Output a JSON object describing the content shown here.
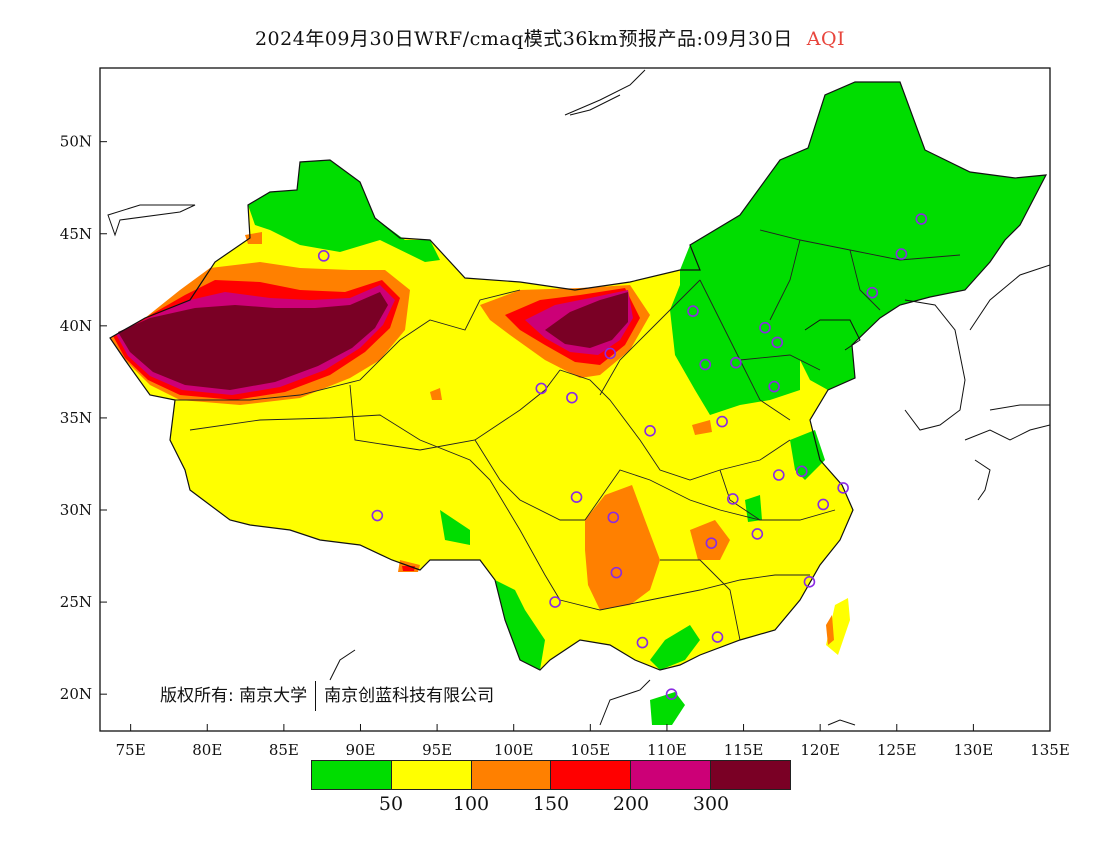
{
  "title": {
    "main": "2024年09月30日WRF/cmaq模式36km预报产品:09月30日",
    "product": "AQI",
    "product_color": "#e8453c"
  },
  "axes": {
    "lon_min": 73,
    "lon_max": 135,
    "lat_min": 18,
    "lat_max": 54,
    "x_ticks": [
      "75E",
      "80E",
      "85E",
      "90E",
      "95E",
      "100E",
      "105E",
      "110E",
      "115E",
      "120E",
      "125E",
      "130E",
      "135E"
    ],
    "y_ticks": [
      "20N",
      "25N",
      "30N",
      "35N",
      "40N",
      "45N",
      "50N"
    ]
  },
  "legend": {
    "colors": [
      "#00dd00",
      "#ffff00",
      "#ff8000",
      "#ff0000",
      "#cc0077",
      "#7a0025"
    ],
    "labels": [
      "50",
      "100",
      "150",
      "200",
      "300"
    ]
  },
  "copyright": {
    "prefix": "版权所有:",
    "org1": "南京大学",
    "org2": "南京创蓝科技有限公司"
  },
  "stations": [
    [
      87.6,
      43.8
    ],
    [
      91.1,
      29.7
    ],
    [
      101.8,
      36.6
    ],
    [
      103.8,
      36.1
    ],
    [
      106.3,
      38.5
    ],
    [
      104.1,
      30.7
    ],
    [
      106.5,
      29.6
    ],
    [
      106.7,
      26.6
    ],
    [
      102.7,
      25.0
    ],
    [
      108.4,
      22.8
    ],
    [
      110.3,
      20.0
    ],
    [
      108.9,
      34.3
    ],
    [
      111.7,
      40.8
    ],
    [
      112.5,
      37.9
    ],
    [
      114.5,
      38.0
    ],
    [
      116.4,
      39.9
    ],
    [
      117.2,
      39.1
    ],
    [
      117.0,
      36.7
    ],
    [
      113.6,
      34.8
    ],
    [
      114.3,
      30.6
    ],
    [
      112.9,
      28.2
    ],
    [
      115.9,
      28.7
    ],
    [
      117.3,
      31.9
    ],
    [
      118.8,
      32.1
    ],
    [
      120.2,
      30.3
    ],
    [
      121.5,
      31.2
    ],
    [
      119.3,
      26.1
    ],
    [
      113.3,
      23.1
    ],
    [
      123.4,
      41.8
    ],
    [
      125.3,
      43.9
    ],
    [
      126.6,
      45.8
    ]
  ],
  "chart_data": {
    "type": "heatmap",
    "title": "2024年09月30日WRF/cmaq模式36km预报产品:09月30日 AQI",
    "xlabel": "",
    "ylabel": "",
    "x_range": [
      73,
      135
    ],
    "y_range": [
      18,
      54
    ],
    "bins": [
      {
        "range": "<50",
        "color": "#00dd00"
      },
      {
        "range": "50-100",
        "color": "#ffff00"
      },
      {
        "range": "100-150",
        "color": "#ff8000"
      },
      {
        "range": "150-200",
        "color": "#ff0000"
      },
      {
        "range": "200-300",
        "color": "#cc0077"
      },
      {
        "range": ">300",
        "color": "#7a0025"
      }
    ]
  }
}
